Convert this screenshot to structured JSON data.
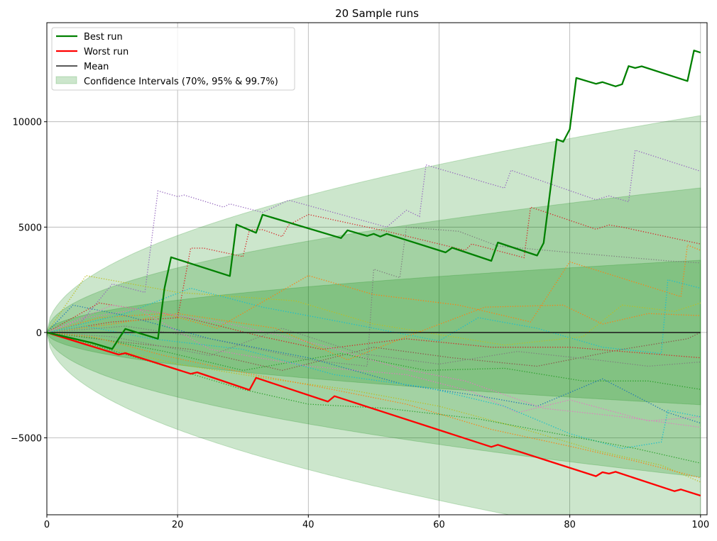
{
  "chart_data": {
    "type": "line",
    "title": "20 Sample runs",
    "xlabel": "",
    "ylabel": "",
    "xlim": [
      0,
      101
    ],
    "ylim": [
      -8650,
      14700
    ],
    "xticks": [
      0,
      20,
      40,
      60,
      80,
      100
    ],
    "xtick_labels": [
      "0",
      "20",
      "40",
      "60",
      "80",
      "100"
    ],
    "yticks": [
      -5000,
      0,
      5000,
      10000
    ],
    "ytick_labels": [
      "−5000",
      "0",
      "5000",
      "10000"
    ],
    "grid": true,
    "legend_placement": "top-left",
    "legend": [
      {
        "label": "Best run",
        "color": "#008000",
        "kind": "line"
      },
      {
        "label": "Worst run",
        "color": "#ff0000",
        "kind": "line"
      },
      {
        "label": "Mean",
        "color": "#000000",
        "kind": "line"
      },
      {
        "label": "Confidence Intervals (70%, 95% & 99.7%)",
        "color": "#008000",
        "kind": "patch"
      }
    ],
    "confidence_intervals": {
      "color": "#008000",
      "step_sigma": 343,
      "sigmas": [
        1,
        2,
        3
      ],
      "x_range": [
        0,
        100
      ]
    },
    "mean": {
      "color": "#000000",
      "value": 0,
      "x_range": [
        0,
        100
      ]
    },
    "best_run": {
      "color": "#008000",
      "points": [
        [
          0,
          0
        ],
        [
          7,
          -500
        ],
        [
          10,
          -780
        ],
        [
          11,
          -300
        ],
        [
          12,
          170
        ],
        [
          17,
          -300
        ],
        [
          18,
          2100
        ],
        [
          19,
          3570
        ],
        [
          28,
          2680
        ],
        [
          29,
          5120
        ],
        [
          32,
          4730
        ],
        [
          33,
          5590
        ],
        [
          45,
          4480
        ],
        [
          46,
          4850
        ],
        [
          49,
          4580
        ],
        [
          50,
          4680
        ],
        [
          51,
          4550
        ],
        [
          52,
          4680
        ],
        [
          61,
          3800
        ],
        [
          62,
          4020
        ],
        [
          68,
          3400
        ],
        [
          69,
          4270
        ],
        [
          75,
          3650
        ],
        [
          76,
          4250
        ],
        [
          78,
          9170
        ],
        [
          79,
          9050
        ],
        [
          80,
          9640
        ],
        [
          81,
          12080
        ],
        [
          84,
          11800
        ],
        [
          85,
          11880
        ],
        [
          87,
          11680
        ],
        [
          88,
          11780
        ],
        [
          89,
          12640
        ],
        [
          90,
          12550
        ],
        [
          91,
          12630
        ],
        [
          98,
          11930
        ],
        [
          99,
          13380
        ],
        [
          100,
          13280
        ]
      ]
    },
    "worst_run": {
      "color": "#ff0000",
      "points": [
        [
          0,
          0
        ],
        [
          11,
          -1050
        ],
        [
          12,
          -980
        ],
        [
          22,
          -1960
        ],
        [
          23,
          -1890
        ],
        [
          31,
          -2730
        ],
        [
          32,
          -2150
        ],
        [
          43,
          -3280
        ],
        [
          44,
          -3020
        ],
        [
          68,
          -5430
        ],
        [
          69,
          -5330
        ],
        [
          84,
          -6820
        ],
        [
          85,
          -6630
        ],
        [
          86,
          -6700
        ],
        [
          87,
          -6610
        ],
        [
          96,
          -7530
        ],
        [
          97,
          -7450
        ],
        [
          100,
          -7740
        ]
      ]
    },
    "sample_runs": [
      {
        "color": "#9467bd",
        "points": [
          [
            0,
            0
          ],
          [
            5,
            400
          ],
          [
            10,
            2300
          ],
          [
            15,
            1900
          ],
          [
            17,
            6720
          ],
          [
            20,
            6450
          ],
          [
            21,
            6520
          ],
          [
            27,
            5950
          ],
          [
            28,
            6100
          ],
          [
            33,
            5700
          ],
          [
            37,
            6280
          ],
          [
            52,
            5000
          ],
          [
            55,
            5800
          ],
          [
            57,
            5500
          ],
          [
            58,
            7950
          ],
          [
            70,
            6850
          ],
          [
            71,
            7700
          ],
          [
            84,
            6300
          ],
          [
            86,
            6480
          ],
          [
            89,
            6200
          ],
          [
            90,
            8650
          ],
          [
            100,
            7650
          ]
        ]
      },
      {
        "color": "#d62728",
        "points": [
          [
            0,
            0
          ],
          [
            10,
            500
          ],
          [
            20,
            700
          ],
          [
            22,
            4000
          ],
          [
            24,
            4000
          ],
          [
            30,
            3600
          ],
          [
            31,
            4870
          ],
          [
            33,
            4880
          ],
          [
            36,
            4550
          ],
          [
            37,
            5100
          ],
          [
            40,
            5600
          ],
          [
            52,
            4800
          ],
          [
            64,
            3900
          ],
          [
            65,
            4200
          ],
          [
            73,
            3550
          ],
          [
            74,
            5950
          ],
          [
            84,
            4900
          ],
          [
            86,
            5100
          ],
          [
            88,
            5000
          ],
          [
            100,
            4200
          ]
        ]
      },
      {
        "color": "#ff7f0e",
        "points": [
          [
            0,
            0
          ],
          [
            8,
            700
          ],
          [
            18,
            900
          ],
          [
            26,
            200
          ],
          [
            40,
            2700
          ],
          [
            50,
            1800
          ],
          [
            63,
            1300
          ],
          [
            74,
            500
          ],
          [
            80,
            3350
          ],
          [
            97,
            1700
          ],
          [
            98,
            4150
          ],
          [
            100,
            3900
          ]
        ]
      },
      {
        "color": "#7f7f7f",
        "points": [
          [
            0,
            0
          ],
          [
            12,
            300
          ],
          [
            25,
            -300
          ],
          [
            40,
            -1300
          ],
          [
            49,
            -1600
          ],
          [
            50,
            3000
          ],
          [
            54,
            2600
          ],
          [
            55,
            5000
          ],
          [
            63,
            4800
          ],
          [
            69,
            4100
          ],
          [
            80,
            3800
          ],
          [
            95,
            3400
          ],
          [
            100,
            3300
          ]
        ]
      },
      {
        "color": "#17becf",
        "points": [
          [
            0,
            0
          ],
          [
            12,
            900
          ],
          [
            22,
            2100
          ],
          [
            33,
            1200
          ],
          [
            45,
            500
          ],
          [
            60,
            -400
          ],
          [
            66,
            700
          ],
          [
            75,
            200
          ],
          [
            85,
            -700
          ],
          [
            94,
            -1000
          ],
          [
            95,
            2500
          ],
          [
            100,
            2100
          ]
        ]
      },
      {
        "color": "#bcbd22",
        "points": [
          [
            0,
            0
          ],
          [
            6,
            2700
          ],
          [
            20,
            1900
          ],
          [
            38,
            1500
          ],
          [
            50,
            400
          ],
          [
            62,
            -200
          ],
          [
            70,
            -600
          ],
          [
            82,
            -200
          ],
          [
            88,
            1300
          ],
          [
            96,
            1000
          ],
          [
            100,
            1400
          ]
        ]
      },
      {
        "color": "#ff7f0e",
        "points": [
          [
            0,
            0
          ],
          [
            10,
            400
          ],
          [
            20,
            900
          ],
          [
            35,
            200
          ],
          [
            46,
            -1300
          ],
          [
            55,
            -200
          ],
          [
            67,
            1200
          ],
          [
            79,
            1300
          ],
          [
            85,
            400
          ],
          [
            92,
            900
          ],
          [
            100,
            800
          ]
        ]
      },
      {
        "color": "#8c564b",
        "points": [
          [
            0,
            0
          ],
          [
            10,
            -400
          ],
          [
            22,
            -800
          ],
          [
            36,
            -1800
          ],
          [
            50,
            -700
          ],
          [
            62,
            -1200
          ],
          [
            75,
            -1600
          ],
          [
            88,
            -800
          ],
          [
            98,
            -300
          ],
          [
            100,
            0
          ]
        ]
      },
      {
        "color": "#d62728",
        "points": [
          [
            0,
            0
          ],
          [
            8,
            1400
          ],
          [
            20,
            800
          ],
          [
            33,
            -200
          ],
          [
            42,
            -800
          ],
          [
            55,
            -300
          ],
          [
            68,
            -700
          ],
          [
            80,
            -700
          ],
          [
            92,
            -1000
          ],
          [
            100,
            -1200
          ]
        ]
      },
      {
        "color": "#7f7f7f",
        "points": [
          [
            0,
            0
          ],
          [
            10,
            -200
          ],
          [
            25,
            -1100
          ],
          [
            36,
            200
          ],
          [
            48,
            -1000
          ],
          [
            60,
            -1500
          ],
          [
            72,
            -900
          ],
          [
            84,
            -1300
          ],
          [
            92,
            -1600
          ],
          [
            100,
            -1400
          ]
        ]
      },
      {
        "color": "#2ca02c",
        "points": [
          [
            0,
            0
          ],
          [
            8,
            -300
          ],
          [
            18,
            -900
          ],
          [
            30,
            -1800
          ],
          [
            45,
            -1000
          ],
          [
            58,
            -1800
          ],
          [
            70,
            -1700
          ],
          [
            82,
            -2300
          ],
          [
            92,
            -2300
          ],
          [
            100,
            -2700
          ]
        ]
      },
      {
        "color": "#e377c2",
        "points": [
          [
            0,
            0
          ],
          [
            6,
            700
          ],
          [
            14,
            1100
          ],
          [
            25,
            -800
          ],
          [
            40,
            -1600
          ],
          [
            55,
            -2000
          ],
          [
            65,
            -2800
          ],
          [
            72,
            -3800
          ],
          [
            80,
            -3200
          ],
          [
            92,
            -4200
          ],
          [
            100,
            -4000
          ]
        ]
      },
      {
        "color": "#1f77b4",
        "points": [
          [
            0,
            0
          ],
          [
            4,
            1300
          ],
          [
            12,
            800
          ],
          [
            25,
            -300
          ],
          [
            40,
            -1200
          ],
          [
            55,
            -2500
          ],
          [
            66,
            -3000
          ],
          [
            75,
            -3500
          ],
          [
            85,
            -2200
          ],
          [
            95,
            -3800
          ],
          [
            100,
            -4300
          ]
        ]
      },
      {
        "color": "#17becf",
        "points": [
          [
            0,
            0
          ],
          [
            6,
            300
          ],
          [
            16,
            -300
          ],
          [
            30,
            -800
          ],
          [
            44,
            -2000
          ],
          [
            58,
            -2600
          ],
          [
            70,
            -3500
          ],
          [
            80,
            -4800
          ],
          [
            88,
            -5500
          ],
          [
            94,
            -5200
          ],
          [
            95,
            -3700
          ],
          [
            100,
            -4000
          ]
        ]
      },
      {
        "color": "#e377c2",
        "points": [
          [
            0,
            0
          ],
          [
            10,
            1300
          ],
          [
            18,
            900
          ],
          [
            28,
            400
          ],
          [
            42,
            -600
          ],
          [
            54,
            -1700
          ],
          [
            64,
            -2300
          ],
          [
            76,
            -3600
          ],
          [
            88,
            -4000
          ],
          [
            100,
            -4500
          ]
        ]
      },
      {
        "color": "#2ca02c",
        "points": [
          [
            0,
            0
          ],
          [
            5,
            -400
          ],
          [
            16,
            -1400
          ],
          [
            30,
            -2700
          ],
          [
            40,
            -3400
          ],
          [
            52,
            -3600
          ],
          [
            66,
            -4100
          ],
          [
            78,
            -4800
          ],
          [
            90,
            -5500
          ],
          [
            100,
            -6200
          ]
        ]
      },
      {
        "color": "#bcbd22",
        "points": [
          [
            0,
            0
          ],
          [
            9,
            -700
          ],
          [
            20,
            -1500
          ],
          [
            34,
            -2200
          ],
          [
            46,
            -2700
          ],
          [
            60,
            -3500
          ],
          [
            72,
            -4500
          ],
          [
            84,
            -5600
          ],
          [
            94,
            -6300
          ],
          [
            100,
            -7100
          ]
        ]
      },
      {
        "color": "#ff7f0e",
        "points": [
          [
            0,
            0
          ],
          [
            7,
            -200
          ],
          [
            18,
            -1100
          ],
          [
            30,
            -1900
          ],
          [
            42,
            -2600
          ],
          [
            55,
            -3400
          ],
          [
            68,
            -4600
          ],
          [
            80,
            -5400
          ],
          [
            90,
            -6100
          ],
          [
            100,
            -6900
          ]
        ]
      }
    ]
  }
}
